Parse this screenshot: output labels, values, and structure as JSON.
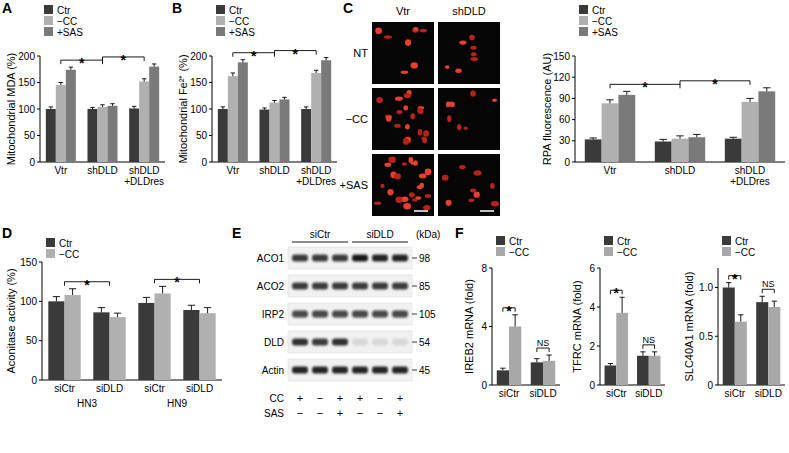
{
  "panels": [
    "A",
    "B",
    "C",
    "D",
    "E",
    "F"
  ],
  "chart_data": [
    {
      "type": "bar",
      "y_label": "Mitochondrial MDA (%)",
      "categories": [
        "Vtr",
        "shDLD",
        "shDLD\n+DLDres"
      ],
      "series": [
        {
          "name": "Ctr",
          "color": "#3a3a3a",
          "values": [
            100,
            100,
            101
          ],
          "errors": [
            4,
            3,
            4
          ]
        },
        {
          "name": "−CC",
          "color": "#b0b0b0",
          "values": [
            145,
            104,
            152
          ],
          "errors": [
            5,
            4,
            5
          ]
        },
        {
          "name": "+SAS",
          "color": "#7a7a7a",
          "values": [
            174,
            106,
            180
          ],
          "errors": [
            5,
            4,
            5
          ]
        }
      ],
      "ylim": [
        0,
        200
      ],
      "yticks": [
        0,
        50,
        100,
        150,
        200
      ],
      "legend": "upper left",
      "annotations": [
        {
          "text": "*",
          "between": [
            0,
            1
          ]
        },
        {
          "text": "*",
          "between": [
            1,
            2
          ]
        }
      ]
    },
    {
      "type": "bar",
      "y_label": "Mitochondrial Fe²⁺ (%)",
      "categories": [
        "Vtr",
        "shDLD",
        "shDLD\n+DLDres"
      ],
      "series": [
        {
          "name": "Ctr",
          "color": "#3a3a3a",
          "values": [
            100,
            99,
            100
          ],
          "errors": [
            4,
            3,
            4
          ]
        },
        {
          "name": "−CC",
          "color": "#b0b0b0",
          "values": [
            162,
            112,
            168
          ],
          "errors": [
            6,
            4,
            5
          ]
        },
        {
          "name": "+SAS",
          "color": "#7a7a7a",
          "values": [
            188,
            118,
            192
          ],
          "errors": [
            5,
            4,
            5
          ]
        }
      ],
      "ylim": [
        0,
        200
      ],
      "yticks": [
        0,
        50,
        100,
        150,
        200
      ],
      "legend": "upper left",
      "annotations": [
        {
          "text": "*",
          "between": [
            0,
            1
          ]
        },
        {
          "text": "*",
          "between": [
            1,
            2
          ]
        }
      ]
    },
    {
      "type": "bar",
      "y_label": "RPA fluorescence (AU)",
      "categories": [
        "Vtr",
        "shDLD",
        "shDLD\n+DLDres"
      ],
      "series": [
        {
          "name": "Ctr",
          "color": "#3a3a3a",
          "values": [
            32,
            29,
            33
          ],
          "errors": [
            2,
            3,
            2
          ]
        },
        {
          "name": "−CC",
          "color": "#b0b0b0",
          "values": [
            83,
            33,
            85
          ],
          "errors": [
            5,
            4,
            5
          ]
        },
        {
          "name": "+SAS",
          "color": "#7a7a7a",
          "values": [
            95,
            35,
            100
          ],
          "errors": [
            5,
            4,
            5
          ]
        }
      ],
      "ylim": [
        0,
        150
      ],
      "yticks": [
        0,
        30,
        60,
        90,
        120,
        150
      ],
      "legend": "upper left",
      "annotations": [
        {
          "text": "*",
          "between": [
            0,
            1
          ]
        },
        {
          "text": "*",
          "between": [
            1,
            2
          ]
        }
      ]
    },
    {
      "type": "bar",
      "y_label": "Aconitase activity (%)",
      "categories": [
        "siCtr",
        "siDLD",
        "siCtr",
        "siDLD"
      ],
      "x_groups": [
        {
          "label": "HN3",
          "categories": [
            0,
            1
          ]
        },
        {
          "label": "HN9",
          "categories": [
            2,
            3
          ]
        }
      ],
      "series": [
        {
          "name": "Ctr",
          "color": "#3a3a3a",
          "values": [
            100,
            86,
            98,
            89
          ],
          "errors": [
            6,
            6,
            7,
            6
          ]
        },
        {
          "name": "−CC",
          "color": "#b0b0b0",
          "values": [
            108,
            80,
            110,
            85
          ],
          "errors": [
            8,
            5,
            9,
            7
          ]
        }
      ],
      "ylim": [
        0,
        150
      ],
      "yticks": [
        0,
        50,
        100,
        150
      ],
      "legend": "upper left",
      "annotations": [
        {
          "text": "*",
          "between": [
            0,
            1
          ]
        },
        {
          "text": "*",
          "between": [
            2,
            3
          ]
        }
      ]
    },
    {
      "type": "bar",
      "y_label": "IREB2 mRNA (fold)",
      "categories": [
        "siCtr",
        "siDLD"
      ],
      "series": [
        {
          "name": "Ctr",
          "color": "#3a3a3a",
          "values": [
            1,
            1.55
          ],
          "errors": [
            0.15,
            0.25
          ]
        },
        {
          "name": "−CC",
          "color": "#a8a8a8",
          "values": [
            4.0,
            1.65
          ],
          "errors": [
            0.8,
            0.4
          ]
        }
      ],
      "ylim": [
        0,
        8
      ],
      "yticks": [
        0,
        4,
        8
      ],
      "legend": "upper left",
      "annotations": [
        {
          "text": "*",
          "within": 0
        },
        {
          "text": "NS",
          "within": 1
        }
      ]
    },
    {
      "type": "bar",
      "y_label": "TFRC mRNA (fold)",
      "categories": [
        "siCtr",
        "siDLD"
      ],
      "series": [
        {
          "name": "Ctr",
          "color": "#3a3a3a",
          "values": [
            1,
            1.5
          ],
          "errors": [
            0.1,
            0.2
          ]
        },
        {
          "name": "−CC",
          "color": "#a8a8a8",
          "values": [
            3.7,
            1.5
          ],
          "errors": [
            0.8,
            0.2
          ]
        }
      ],
      "ylim": [
        0,
        6
      ],
      "yticks": [
        0,
        2,
        4,
        6
      ],
      "legend": "upper left",
      "annotations": [
        {
          "text": "*",
          "within": 0
        },
        {
          "text": "NS",
          "within": 1
        }
      ]
    },
    {
      "type": "bar",
      "y_label": "SLC40A1 mRNA (fold)",
      "categories": [
        "siCtr",
        "siDLD"
      ],
      "series": [
        {
          "name": "Ctr",
          "color": "#3a3a3a",
          "values": [
            1.0,
            0.85
          ],
          "errors": [
            0.05,
            0.06
          ]
        },
        {
          "name": "−CC",
          "color": "#a8a8a8",
          "values": [
            0.65,
            0.8
          ],
          "errors": [
            0.07,
            0.06
          ]
        }
      ],
      "ylim": [
        0,
        1.2
      ],
      "yticks": [
        0,
        0.5,
        {
          "value": 1,
          "label": "1.0"
        }
      ],
      "legend": "upper left",
      "annotations": [
        {
          "text": "*",
          "within": 0
        },
        {
          "text": "NS",
          "within": 1
        }
      ]
    }
  ],
  "micrographs": {
    "columns": [
      "Vtr",
      "shDLD"
    ],
    "rows": [
      "NT",
      "−CC",
      "+SAS"
    ]
  },
  "western_blot": {
    "unit": "(kDa)",
    "groups": [
      {
        "label": "siCtr",
        "lanes": [
          0,
          1,
          2
        ]
      },
      {
        "label": "siDLD",
        "lanes": [
          3,
          4,
          5
        ]
      }
    ],
    "rows": [
      {
        "label": "ACO1",
        "kda": 98,
        "levels": [
          0.8,
          0.8,
          0.8,
          0.95,
          0.9,
          0.9
        ]
      },
      {
        "label": "ACO2",
        "kda": 85,
        "levels": [
          0.8,
          0.8,
          0.8,
          0.8,
          0.8,
          0.8
        ]
      },
      {
        "label": "IRP2",
        "kda": 105,
        "levels": [
          0.75,
          0.75,
          0.75,
          0.75,
          0.75,
          0.75
        ]
      },
      {
        "label": "DLD",
        "kda": 54,
        "levels": [
          0.85,
          0.8,
          0.85,
          0.1,
          0.1,
          0.1
        ]
      },
      {
        "label": "Actin",
        "kda": 45,
        "levels": [
          0.9,
          0.9,
          0.9,
          0.9,
          0.9,
          0.9
        ]
      }
    ],
    "treatments": [
      {
        "label": "CC",
        "values": [
          "+",
          "−",
          "+",
          "+",
          "−",
          "+"
        ]
      },
      {
        "label": "SAS",
        "values": [
          "−",
          "−",
          "+",
          "−",
          "−",
          "+"
        ]
      }
    ]
  }
}
